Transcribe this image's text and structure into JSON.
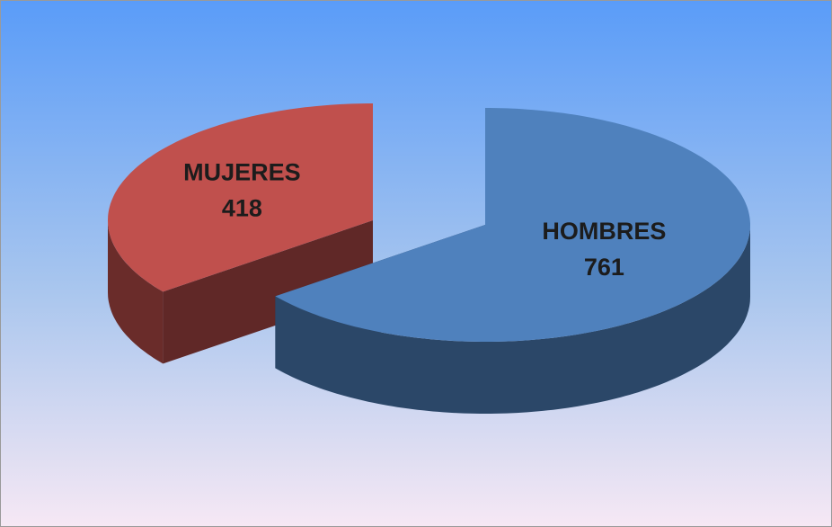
{
  "chart_data": {
    "type": "pie3d",
    "categories": [
      "MUJERES",
      "HOMBRES"
    ],
    "values": [
      418,
      761
    ],
    "colors": [
      "#c0504d",
      "#4f81bd"
    ]
  }
}
